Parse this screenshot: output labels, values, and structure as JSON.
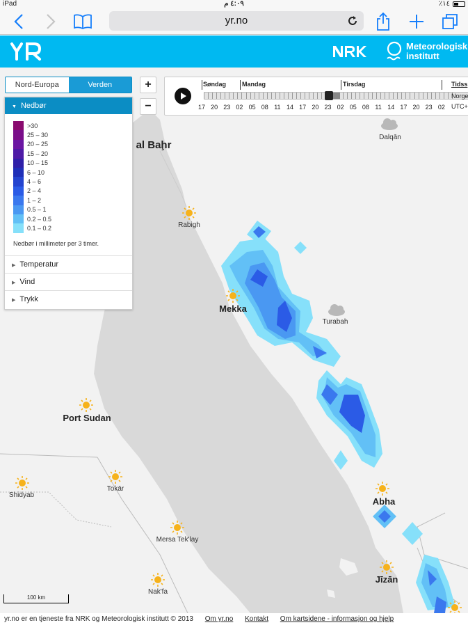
{
  "status": {
    "device": "iPad",
    "time": "٤:٠٩ م",
    "battery": "٪١٤"
  },
  "safari": {
    "address": "yr.no",
    "icons": [
      "back-icon",
      "forward-icon",
      "bookmarks-icon",
      "reload-icon",
      "share-icon",
      "new-tab-icon",
      "tabs-icon"
    ]
  },
  "header": {
    "logo": "YR",
    "nrk": "NRK",
    "met_line1": "Meteorologisk",
    "met_line2": "institutt",
    "color": "#00b9f1"
  },
  "region": {
    "left": "Nord-Europa",
    "right": "Verden"
  },
  "zoom": {
    "plus": "+",
    "minus": "−"
  },
  "timeline": {
    "days": [
      "Søndag",
      "Mandag",
      "Tirsdag"
    ],
    "tz_label": "Tidss",
    "tz_norge": "Norge",
    "tz_utc": "UTC+",
    "hours": [
      "17",
      "20",
      "23",
      "02",
      "05",
      "08",
      "11",
      "14",
      "17",
      "20",
      "23",
      "02",
      "05",
      "08",
      "11",
      "14",
      "17",
      "20",
      "23",
      "02"
    ]
  },
  "panel": {
    "title": "Nedbør",
    "legend": [
      {
        "label": ">30",
        "color": "#8a0a6f"
      },
      {
        "label": "25 – 30",
        "color": "#7a0e8a"
      },
      {
        "label": "20 – 25",
        "color": "#6b16a3"
      },
      {
        "label": "15 – 20",
        "color": "#4e1aa6"
      },
      {
        "label": "10 – 15",
        "color": "#2f1fa8"
      },
      {
        "label": "6 – 10",
        "color": "#1f2fb8"
      },
      {
        "label": "4 – 6",
        "color": "#2444cf"
      },
      {
        "label": "2 – 4",
        "color": "#2b5be6"
      },
      {
        "label": "1 – 2",
        "color": "#3a78ee"
      },
      {
        "label": "0.5 – 1",
        "color": "#4a98f2"
      },
      {
        "label": "0.2 – 0.5",
        "color": "#62c0f6"
      },
      {
        "label": "0.1 – 0.2",
        "color": "#86e0fa"
      }
    ],
    "note": "Nedbør i millimeter per 3 timer.",
    "items": [
      "Temperatur",
      "Vind",
      "Trykk"
    ]
  },
  "places": {
    "al_bahr": "al Baḩr",
    "dalqan": "Dalqān",
    "rabigh": "Rabigh",
    "mekka": "Mekka",
    "turabah": "Turabah",
    "port_sudan": "Port Sudan",
    "shidyab": "Shidyab",
    "tokar": "Tokār",
    "mersa": "Mersa Tek'lay",
    "abha": "Abha",
    "jizan": "Jīzān",
    "nakfa": "Nak'fa"
  },
  "scale": "100 km",
  "footer": {
    "text": "yr.no er en tjeneste fra NRK og Meteorologisk institutt © 2013",
    "links": [
      "Om yr.no",
      "Kontakt",
      "Om kartsidene - informasjon og hjelp"
    ]
  }
}
